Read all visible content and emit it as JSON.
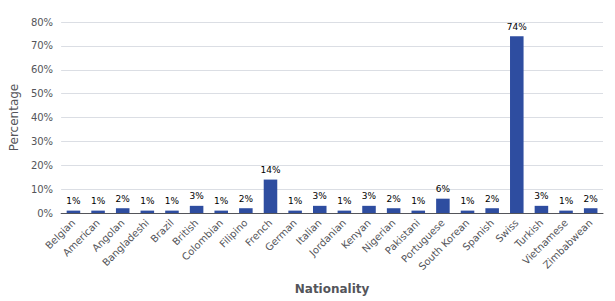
{
  "chart_data": {
    "type": "bar",
    "xlabel": "Nationality",
    "ylabel": "Percentage",
    "categories": [
      "Belgian",
      "American",
      "Angolan",
      "Bangladeshi",
      "Brazil",
      "British",
      "Colombian",
      "Filipino",
      "French",
      "German",
      "Italian",
      "Jordanian",
      "Kenyan",
      "Nigerian",
      "Pakistani",
      "Portuguese",
      "South Korean",
      "Spanish",
      "Swiss",
      "Turkish",
      "Vietnamese",
      "Zimbabwean"
    ],
    "values": [
      1,
      1,
      2,
      1,
      1,
      3,
      1,
      2,
      14,
      1,
      3,
      1,
      3,
      2,
      1,
      6,
      1,
      2,
      74,
      3,
      1,
      2
    ],
    "value_labels": [
      "1%",
      "1%",
      "2%",
      "1%",
      "1%",
      "3%",
      "1%",
      "2%",
      "14%",
      "1%",
      "3%",
      "1%",
      "3%",
      "2%",
      "1%",
      "6%",
      "1%",
      "2%",
      "74%",
      "3%",
      "1%",
      "2%"
    ],
    "data_labels": true,
    "color": "#2E4DA0",
    "ylim": [
      0,
      80
    ],
    "yticks": [
      {
        "value": 0,
        "label": "0%"
      },
      {
        "value": 10,
        "label": "10%"
      },
      {
        "value": 20,
        "label": "20%"
      },
      {
        "value": 30,
        "label": "30%"
      },
      {
        "value": 40,
        "label": "40%"
      },
      {
        "value": 50,
        "label": "50%"
      },
      {
        "value": 60,
        "label": "60%"
      },
      {
        "value": 70,
        "label": "70%"
      },
      {
        "value": 80,
        "label": "80%"
      }
    ],
    "grid": true
  }
}
